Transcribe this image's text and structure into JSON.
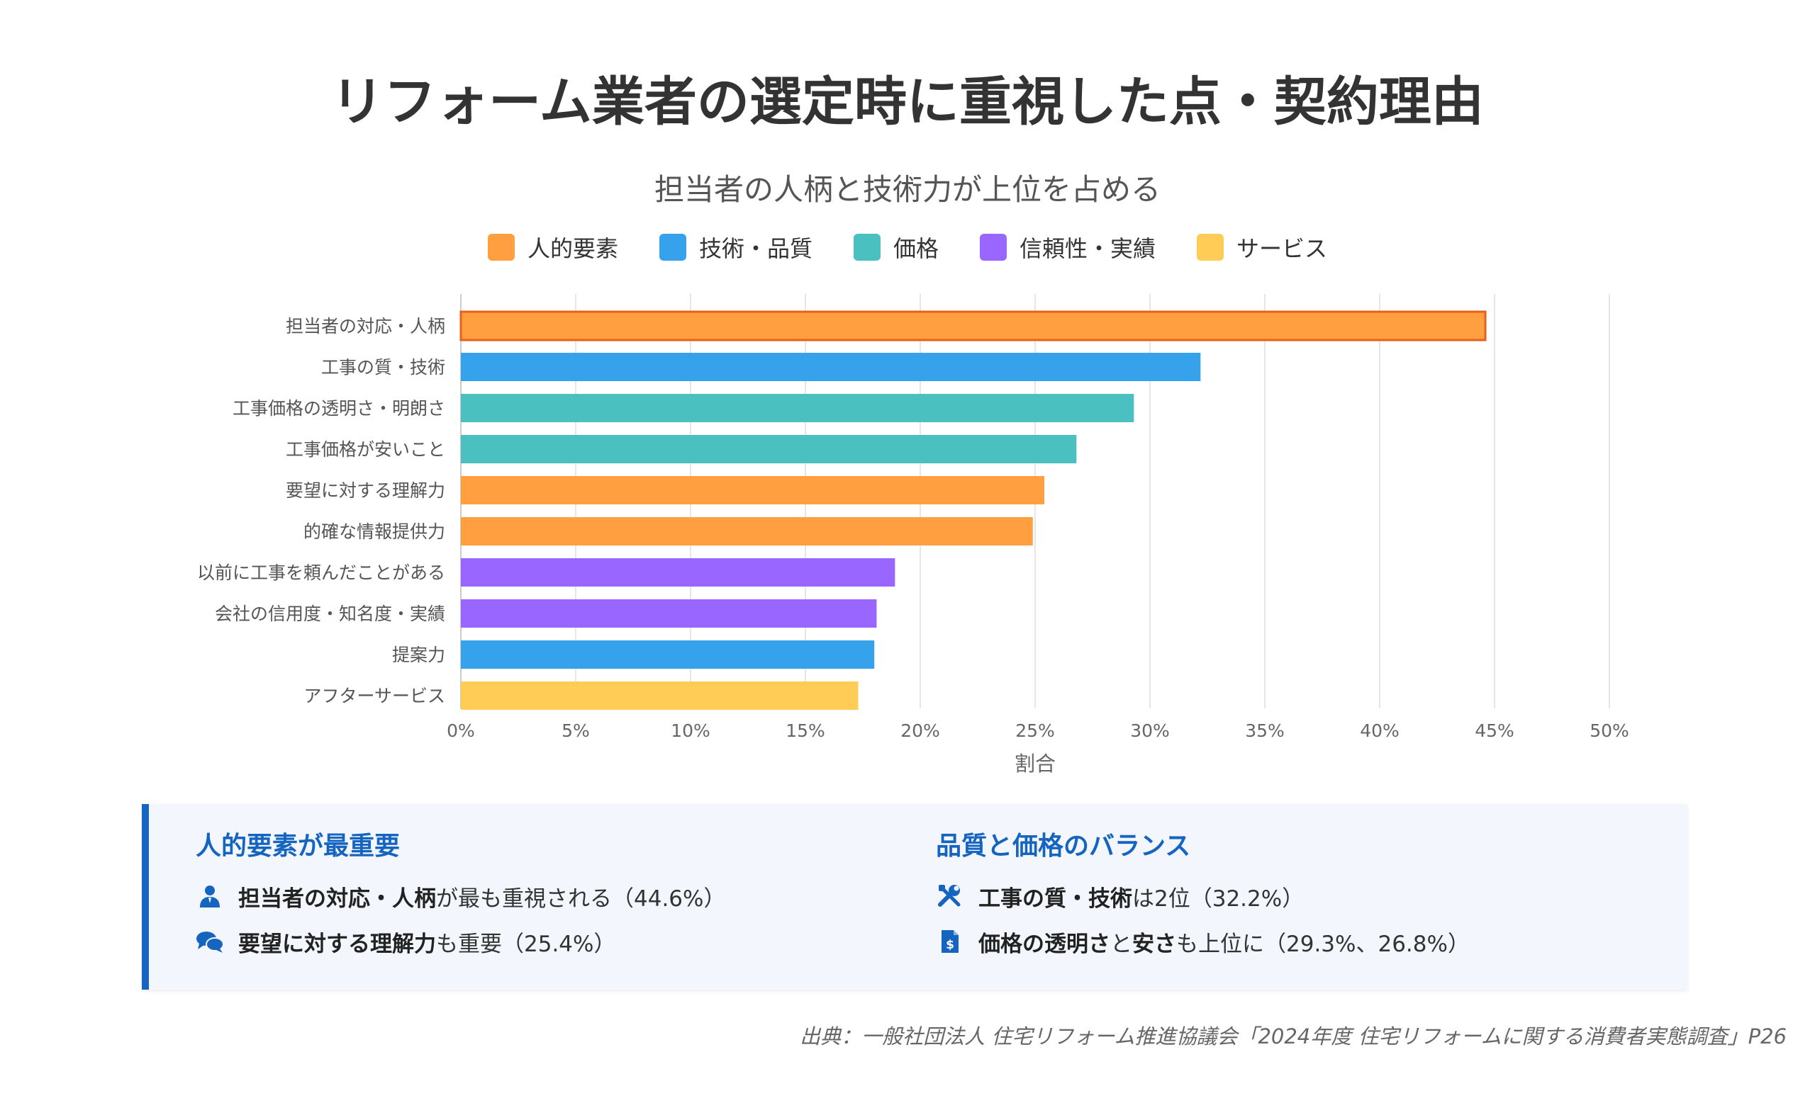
{
  "title": "リフォーム業者の選定時に重視した点・契約理由",
  "chart_data": {
    "type": "bar",
    "orientation": "horizontal",
    "subtitle": "担当者の人柄と技術力が上位を占める",
    "xlabel": "割合",
    "xlim": [
      0,
      50
    ],
    "x_ticks": [
      "0%",
      "5%",
      "10%",
      "15%",
      "20%",
      "25%",
      "30%",
      "35%",
      "40%",
      "45%",
      "50%"
    ],
    "grid": true,
    "legend_position": "top-center",
    "legend": [
      {
        "name": "人的要素",
        "color": "#ff9f40"
      },
      {
        "name": "技術・品質",
        "color": "#36a2eb"
      },
      {
        "name": "価格",
        "color": "#4bc0c0"
      },
      {
        "name": "信頼性・実績",
        "color": "#9966ff"
      },
      {
        "name": "サービス",
        "color": "#ffcd56"
      }
    ],
    "categories": [
      "担当者の対応・人柄",
      "工事の質・技術",
      "工事価格の透明さ・明朗さ",
      "工事価格が安いこと",
      "要望に対する理解力",
      "的確な情報提供力",
      "以前に工事を頼んだことがある",
      "会社の信用度・知名度・実績",
      "提案力",
      "アフターサービス"
    ],
    "values": [
      44.6,
      32.2,
      29.3,
      26.8,
      25.4,
      24.9,
      18.9,
      18.1,
      18.0,
      17.3
    ],
    "groups": [
      "人的要素",
      "技術・品質",
      "価格",
      "価格",
      "人的要素",
      "人的要素",
      "信頼性・実績",
      "信頼性・実績",
      "技術・品質",
      "サービス"
    ],
    "highlight_color": "#e8601c"
  },
  "insights": {
    "left": {
      "heading": "人的要素が最重要",
      "points": [
        {
          "icon": "person-icon",
          "bold": "担当者の対応・人柄",
          "rest": "が最も重視される（44.6%）"
        },
        {
          "icon": "chat-bubbles-icon",
          "bold": "要望に対する理解力",
          "rest": "も重要（25.4%）"
        }
      ]
    },
    "right": {
      "heading": "品質と価格のバランス",
      "points": [
        {
          "icon": "tools-icon",
          "bold": "工事の質・技術",
          "rest": "は2位（32.2%）"
        },
        {
          "icon": "invoice-dollar-icon",
          "bold1": "価格の透明さ",
          "mid": "と",
          "bold2": "安さ",
          "rest": "も上位に（29.3%、26.8%）"
        }
      ]
    }
  },
  "source": "出典：一般社団法人 住宅リフォーム推進協議会「2024年度 住宅リフォームに関する消費者実態調査」P26"
}
